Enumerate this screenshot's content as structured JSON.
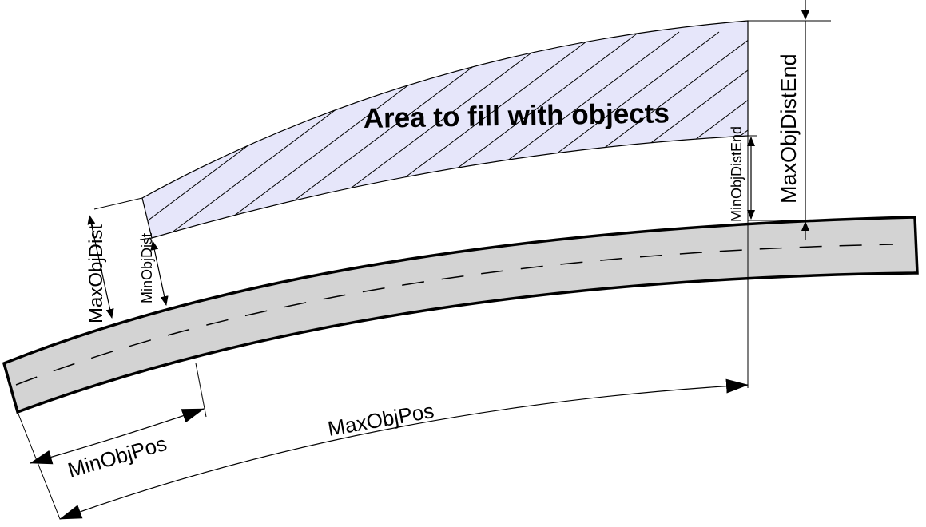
{
  "labels": {
    "area_title": "Area to fill with objects",
    "max_obj_dist": "MaxObjDist",
    "min_obj_dist": "MinObjDist",
    "min_obj_dist_end": "MinObjDistEnd",
    "max_obj_dist_end": "MaxObjDistEnd",
    "min_obj_pos": "MinObjPos",
    "max_obj_pos": "MaxObjPos"
  },
  "colors": {
    "road_fill": "#d3d3d3",
    "area_fill": "#e6e6fa",
    "line": "#000000"
  }
}
